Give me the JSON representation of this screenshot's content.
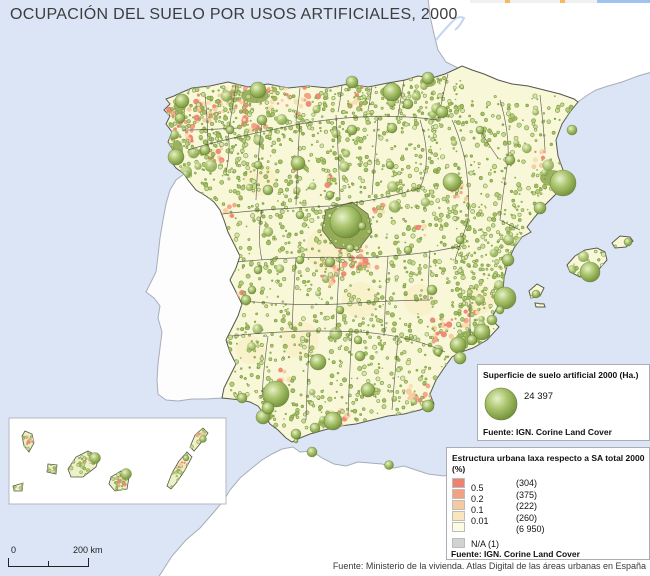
{
  "map": {
    "title": "OCUPACIÓN DEL SUELO POR USOS ARTIFICIALES, 2000"
  },
  "legend_size": {
    "title": "Superficie de suelo artificial 2000 (Ha.)",
    "bubble_value": "24 397",
    "source": "Fuente: IGN. Corine Land Cover"
  },
  "legend_structure": {
    "title": "Estructura urbana laxa respecto a SA total 2000",
    "unit": "(%)",
    "classes": [
      {
        "color": "#ee8270",
        "label": "0.5",
        "count": "(304)"
      },
      {
        "color": "#f3a183",
        "label": "0.2",
        "count": "(375)"
      },
      {
        "color": "#f7c9a0",
        "label": "0.1",
        "count": "(222)"
      },
      {
        "color": "#fae6bd",
        "label": "0.01",
        "count": "(260)"
      },
      {
        "color": "#fdfbe2",
        "label": "",
        "count": "(6 950)"
      }
    ],
    "na_class": {
      "color": "#d2d2d2",
      "label": "N/A (1)"
    },
    "source": "Fuente: IGN. Corine Land Cover"
  },
  "scale_bar": {
    "zero_label": "0",
    "end_label": "200 km"
  },
  "footer": {
    "source": "Fuente: Ministerio de la vivienda. Atlas Digital de las áreas urbanas en España"
  },
  "colors": {
    "sea": "#dbe5f6",
    "other_land": "#ffffff",
    "spain_base": "#f8f8d8",
    "bubble_green": "#8fae4d",
    "province_border": "#4f4e44"
  }
}
